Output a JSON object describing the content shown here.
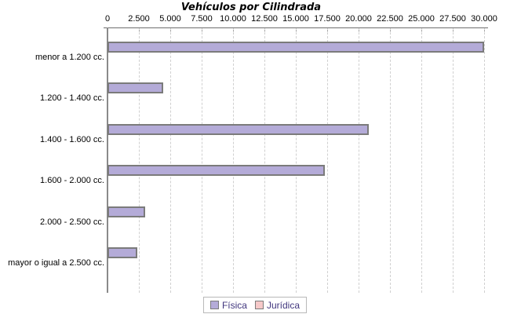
{
  "chart_data": {
    "type": "bar",
    "orientation": "horizontal",
    "title": "Vehículos por Cilindrada",
    "categories": [
      "menor a 1.200 cc.",
      "1.200 - 1.400 cc.",
      "1.400 - 1.600 cc.",
      "1.600 - 2.000 cc.",
      "2.000 - 2.500 cc.",
      "mayor o igual a 2.500 cc."
    ],
    "series": [
      {
        "name": "Física",
        "color": "#b4abd8",
        "border_color": "#7b7b7b",
        "values": [
          30000,
          4450,
          20800,
          17300,
          3000,
          2400
        ]
      },
      {
        "name": "Jurídica",
        "color": "#f6c9c9",
        "border_color": "#7b7b7b",
        "values": [
          0,
          0,
          0,
          0,
          0,
          0
        ]
      }
    ],
    "xlim": [
      0,
      30000
    ],
    "xticks": [
      0,
      2500,
      5000,
      7500,
      10000,
      12500,
      15000,
      17500,
      20000,
      22500,
      25000,
      27500,
      30000
    ],
    "xtick_labels": [
      "0",
      "2.500",
      "5.000",
      "7.500",
      "10.000",
      "12.500",
      "15.000",
      "17.500",
      "20.000",
      "22.500",
      "25.000",
      "27.500",
      "30.000"
    ],
    "x_axis_position": "top",
    "grid": "dashed-vertical",
    "legend_position": "bottom",
    "background_color": "#ffffff"
  }
}
